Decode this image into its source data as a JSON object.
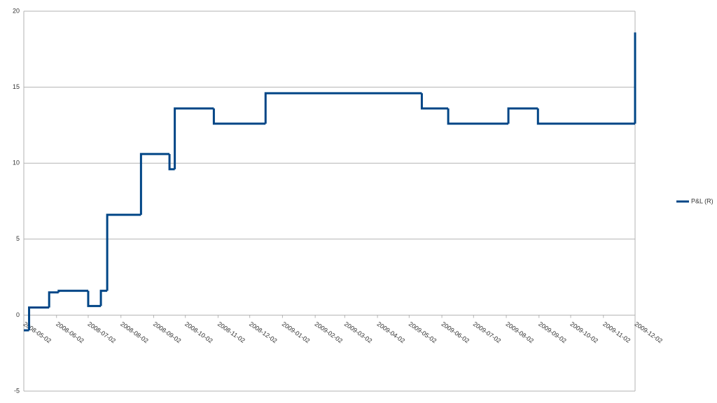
{
  "chart_data": {
    "type": "step",
    "series": [
      {
        "name": "P&L (R)",
        "color": "#004586",
        "x": [
          "2008-05-02",
          "2008-05-07",
          "2008-05-26",
          "2008-06-04",
          "2008-07-02",
          "2008-07-14",
          "2008-07-20",
          "2008-08-21",
          "2008-09-17",
          "2008-09-22",
          "2008-10-29",
          "2008-12-17",
          "2009-05-14",
          "2009-06-08",
          "2009-08-04",
          "2009-09-01",
          "2009-12-02"
        ],
        "values": [
          -1,
          0.5,
          1.5,
          1.6,
          0.6,
          1.6,
          6.6,
          10.6,
          9.6,
          13.6,
          12.6,
          14.6,
          13.6,
          12.6,
          13.6,
          12.6,
          18.6
        ]
      }
    ],
    "xlim": [
      "2008-05-02",
      "2009-12-02"
    ],
    "xticks": [
      "2008-05-02",
      "2008-06-02",
      "2008-07-02",
      "2008-08-02",
      "2008-09-02",
      "2008-10-02",
      "2008-11-02",
      "2008-12-02",
      "2009-01-02",
      "2009-02-02",
      "2009-03-02",
      "2009-04-02",
      "2009-05-02",
      "2009-06-02",
      "2009-07-02",
      "2009-08-02",
      "2009-09-02",
      "2009-10-02",
      "2009-11-02",
      "2009-12-02"
    ],
    "ylim": [
      -5,
      20
    ],
    "yticks": [
      -5,
      0,
      5,
      10,
      15,
      20
    ],
    "grid": true,
    "legend": "right"
  }
}
